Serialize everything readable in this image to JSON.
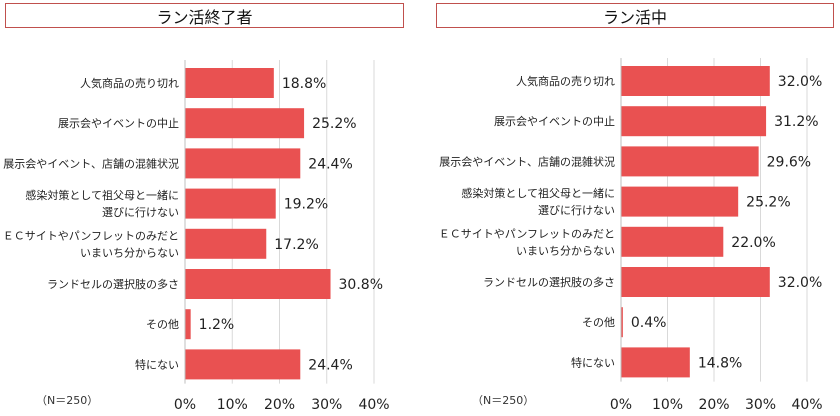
{
  "panels": [
    {
      "title": "ラン活終了者"
    },
    {
      "title": "ラン活中"
    }
  ],
  "note": "（N＝250）",
  "colors": {
    "bar": "#e95151",
    "frame": "#c0504d",
    "grid": "#d9d9d9",
    "axis": "#bfbfbf"
  },
  "chart_data": [
    {
      "type": "bar",
      "orientation": "horizontal",
      "title": "ラン活終了者",
      "categories": [
        [
          "人気商品の売り切れ"
        ],
        [
          "展示会やイベントの中止"
        ],
        [
          "展示会やイベント、店舗の混雑状況"
        ],
        [
          "感染対策として祖父母と一緒に",
          "選びに行けない"
        ],
        [
          "ＥＣサイトやパンフレットのみだと",
          "いまいち分からない"
        ],
        [
          "ランドセルの選択肢の多さ"
        ],
        [
          "その他"
        ],
        [
          "特にない"
        ]
      ],
      "values": [
        18.8,
        25.2,
        24.4,
        19.2,
        17.2,
        30.8,
        1.2,
        24.4
      ],
      "value_labels": [
        "18.8%",
        "25.2%",
        "24.4%",
        "19.2%",
        "17.2%",
        "30.8%",
        "1.2%",
        "24.4%"
      ],
      "xlim": [
        0,
        40
      ],
      "xticks": [
        "0%",
        "10%",
        "20%",
        "30%",
        "40%"
      ],
      "grid": true
    },
    {
      "type": "bar",
      "orientation": "horizontal",
      "title": "ラン活中",
      "categories": [
        [
          "人気商品の売り切れ"
        ],
        [
          "展示会やイベントの中止"
        ],
        [
          "展示会やイベント、店舗の混雑状況"
        ],
        [
          "感染対策として祖父母と一緒に",
          "選びに行けない"
        ],
        [
          "ＥＣサイトやパンフレットのみだと",
          "いまいち分からない"
        ],
        [
          "ランドセルの選択肢の多さ"
        ],
        [
          "その他"
        ],
        [
          "特にない"
        ]
      ],
      "values": [
        32.0,
        31.2,
        29.6,
        25.2,
        22.0,
        32.0,
        0.4,
        14.8
      ],
      "value_labels": [
        "32.0%",
        "31.2%",
        "29.6%",
        "25.2%",
        "22.0%",
        "32.0%",
        "0.4%",
        "14.8%"
      ],
      "xlim": [
        0,
        40
      ],
      "xticks": [
        "0%",
        "10%",
        "20%",
        "30%",
        "40%"
      ],
      "grid": true
    }
  ]
}
